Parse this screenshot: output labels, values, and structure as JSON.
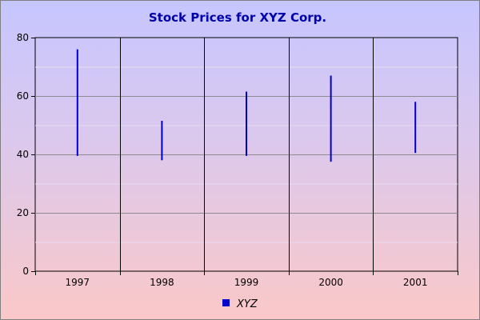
{
  "chart_data": {
    "type": "hilo",
    "title": "Stock Prices for XYZ Corp.",
    "xlabel": "",
    "ylabel": "",
    "categories": [
      "1997",
      "1998",
      "1999",
      "2000",
      "2001"
    ],
    "series": [
      {
        "name": "XYZ",
        "color": "#0000cc",
        "high": [
          76,
          51.5,
          61.5,
          67,
          58
        ],
        "low": [
          39.5,
          38,
          39.5,
          37.5,
          40.5
        ]
      }
    ],
    "ylim": [
      0,
      80
    ],
    "yticks": [
      0,
      20,
      40,
      60,
      80
    ],
    "grid": true,
    "legend_position": "bottom"
  }
}
